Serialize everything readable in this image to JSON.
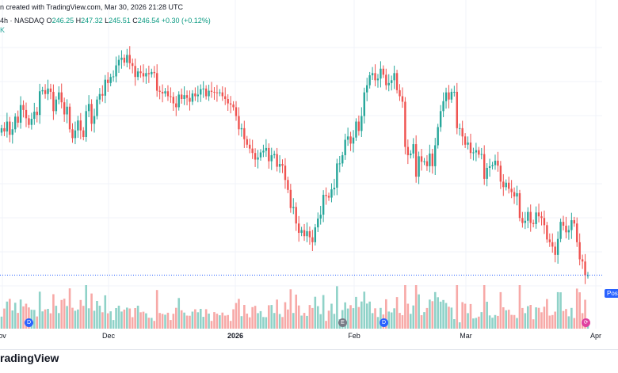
{
  "header": {
    "created_text": "n created with TradingView.com, Mar 30, 2026 21:28 UTC",
    "symbol_line": "4h · NASDAQ",
    "o_label": "O",
    "o_value": "246.25",
    "h_label": "H",
    "h_value": "247.32",
    "l_label": "L",
    "l_value": "245.51",
    "c_label": "C",
    "c_value": "246.54",
    "change": "+0.30 (+0.12%)",
    "k_label": "K"
  },
  "price_tag": "Post",
  "logo_text": "radingView",
  "markers": [
    {
      "label": "D",
      "type": "dividend",
      "color": "#2962ff"
    },
    {
      "label": "E",
      "type": "earnings",
      "color": "#787b86"
    },
    {
      "label": "D",
      "type": "dividend",
      "color": "#2962ff"
    }
  ],
  "colors": {
    "up": "#26a69a",
    "down": "#ef5350",
    "vol_up": "#8fd2c8",
    "vol_down": "#f7a9a7"
  },
  "chart_data": {
    "type": "candlestick",
    "interval": "4h",
    "exchange": "NASDAQ",
    "y_range": [
      244,
      290
    ],
    "x_tick_labels": [
      "ov",
      "Dec",
      "2026",
      "Feb",
      "Mar",
      "Apr"
    ],
    "x_tick_bold": [
      false,
      false,
      true,
      false,
      false,
      false
    ],
    "last_close": 246.54,
    "closes": [
      273.2,
      272.6,
      274.4,
      272.0,
      273.0,
      275.3,
      274.2,
      277.4,
      276.5,
      275.0,
      273.8,
      274.9,
      276.2,
      275.6,
      279.9,
      280.1,
      279.4,
      280.4,
      279.8,
      276.3,
      278.4,
      279.7,
      277.9,
      275.7,
      277.1,
      273.0,
      271.4,
      272.8,
      274.6,
      272.8,
      271.6,
      276.3,
      277.6,
      274.0,
      275.4,
      278.4,
      279.4,
      279.1,
      282.0,
      281.4,
      282.5,
      282.6,
      284.6,
      285.6,
      286.0,
      285.1,
      286.5,
      285.0,
      284.5,
      282.5,
      283.5,
      283.2,
      282.6,
      283.2,
      283.0,
      283.4,
      283.2,
      280.0,
      279.8,
      279.5,
      279.9,
      279.0,
      278.9,
      277.7,
      277.0,
      279.3,
      278.5,
      279.2,
      278.7,
      278.0,
      279.5,
      279.0,
      279.3,
      280.3,
      280.4,
      279.0,
      280.0,
      279.8,
      279.7,
      279.6,
      279.7,
      279.0,
      278.5,
      277.7,
      277.5,
      277.0,
      275.4,
      273.0,
      273.2,
      271.2,
      270.2,
      269.5,
      268.7,
      267.5,
      267.9,
      268.8,
      269.1,
      269.6,
      267.2,
      268.3,
      268.5,
      266.2,
      266.7,
      266.4,
      263.8,
      262.0,
      258.7,
      258.9,
      255.9,
      254.2,
      254.7,
      253.6,
      254.5,
      253.4,
      252.5,
      255.2,
      256.8,
      257.5,
      261.1,
      260.9,
      260.6,
      262.1,
      262.4,
      266.8,
      266.8,
      268.3,
      271.1,
      271.7,
      270.4,
      271.5,
      274.4,
      272.7,
      275.4,
      279.7,
      281.0,
      282.8,
      283.2,
      281.9,
      282.2,
      284.0,
      282.9,
      281.0,
      281.4,
      281.9,
      283.2,
      280.1,
      279.0,
      278.0,
      269.8,
      268.3,
      268.6,
      270.3,
      264.4,
      268.1,
      267.1,
      267.2,
      266.3,
      268.6,
      266.3,
      270.1,
      273.4,
      276.3,
      278.1,
      279.7,
      278.4,
      279.8,
      279.8,
      273.2,
      273.2,
      271.7,
      270.2,
      270.6,
      268.7,
      268.8,
      269.2,
      268.4,
      268.5,
      264.0,
      266.0,
      266.3,
      266.5,
      267.3,
      266.4,
      263.5,
      262.5,
      263.3,
      262.2,
      261.6,
      260.8,
      261.4,
      256.9,
      256.0,
      256.4,
      258.0,
      256.0,
      255.8,
      257.9,
      257.2,
      256.9,
      255.6,
      253.0,
      252.5,
      251.7,
      250.2,
      253.1,
      256.2,
      255.5,
      254.3,
      254.7,
      256.5,
      255.9,
      252.5,
      249.4,
      249.0,
      246.5,
      246.5
    ]
  }
}
